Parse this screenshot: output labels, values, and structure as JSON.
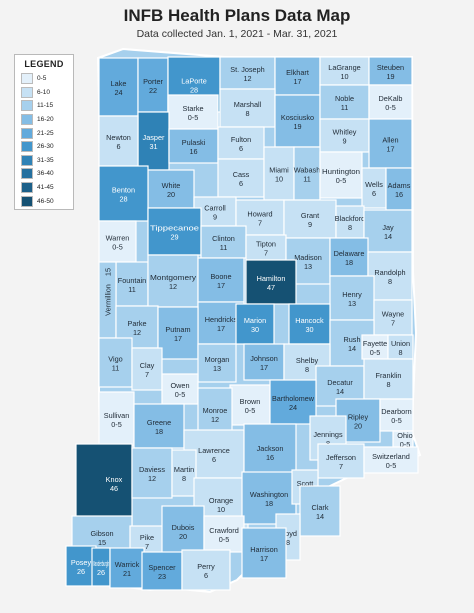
{
  "title": "INFB Health Plans Data Map",
  "subtitle": "Data collected Jan. 1, 2021 - Mar. 31, 2021",
  "legend": {
    "title": "LEGEND",
    "items": [
      {
        "label": "0-5",
        "color": "#e3f0fa"
      },
      {
        "label": "6-10",
        "color": "#c6e1f4"
      },
      {
        "label": "11-15",
        "color": "#a6d0ed"
      },
      {
        "label": "16-20",
        "color": "#84bde5"
      },
      {
        "label": "21-25",
        "color": "#62aadc"
      },
      {
        "label": "26-30",
        "color": "#4296cc"
      },
      {
        "label": "31-35",
        "color": "#2f82b6"
      },
      {
        "label": "36-40",
        "color": "#25709f"
      },
      {
        "label": "41-45",
        "color": "#1c6089"
      },
      {
        "label": "46-50",
        "color": "#155173"
      }
    ]
  },
  "counties": [
    {
      "name": "Lake",
      "value": "24"
    },
    {
      "name": "Porter",
      "value": "22"
    },
    {
      "name": "LaPorte",
      "value": "28"
    },
    {
      "name": "St. Joseph",
      "value": "12"
    },
    {
      "name": "Elkhart",
      "value": "17"
    },
    {
      "name": "LaGrange",
      "value": "10"
    },
    {
      "name": "Steuben",
      "value": "19"
    },
    {
      "name": "Starke",
      "value": "0-5"
    },
    {
      "name": "Marshall",
      "value": "8"
    },
    {
      "name": "Kosciusko",
      "value": "19"
    },
    {
      "name": "Noble",
      "value": "11"
    },
    {
      "name": "DeKalb",
      "value": "0-5"
    },
    {
      "name": "Jasper",
      "value": "31"
    },
    {
      "name": "Pulaski",
      "value": "16"
    },
    {
      "name": "Fulton",
      "value": "6"
    },
    {
      "name": "Whitley",
      "value": "9"
    },
    {
      "name": "Allen",
      "value": "17"
    },
    {
      "name": "Newton",
      "value": "6"
    },
    {
      "name": "Cass",
      "value": "6"
    },
    {
      "name": "Miami",
      "value": "10"
    },
    {
      "name": "Wabash",
      "value": "11"
    },
    {
      "name": "Huntington",
      "value": "0-5"
    },
    {
      "name": "Wells",
      "value": "6"
    },
    {
      "name": "Adams",
      "value": "16"
    },
    {
      "name": "White",
      "value": "20"
    },
    {
      "name": "Benton",
      "value": "28"
    },
    {
      "name": "Carroll",
      "value": "9"
    },
    {
      "name": "Howard",
      "value": "7"
    },
    {
      "name": "Grant",
      "value": "9"
    },
    {
      "name": "Blackford",
      "value": "8"
    },
    {
      "name": "Jay",
      "value": "14"
    },
    {
      "name": "Warren",
      "value": "0-5"
    },
    {
      "name": "Tippecanoe",
      "value": "29"
    },
    {
      "name": "Clinton",
      "value": "11"
    },
    {
      "name": "Tipton",
      "value": "7"
    },
    {
      "name": "Madison",
      "value": "13"
    },
    {
      "name": "Delaware",
      "value": "18"
    },
    {
      "name": "Randolph",
      "value": "8"
    },
    {
      "name": "Fountain",
      "value": "11"
    },
    {
      "name": "Montgomery",
      "value": "12"
    },
    {
      "name": "Boone",
      "value": "17"
    },
    {
      "name": "Hamilton",
      "value": "47"
    },
    {
      "name": "Henry",
      "value": "13"
    },
    {
      "name": "Wayne",
      "value": "7"
    },
    {
      "name": "Vermillion",
      "value": "15"
    },
    {
      "name": "Parke",
      "value": "12"
    },
    {
      "name": "Hendricks",
      "value": "17"
    },
    {
      "name": "Marion",
      "value": "30"
    },
    {
      "name": "Hancock",
      "value": "30"
    },
    {
      "name": "Rush",
      "value": "14"
    },
    {
      "name": "Fayette",
      "value": "0-5"
    },
    {
      "name": "Union",
      "value": "8"
    },
    {
      "name": "Putnam",
      "value": "17"
    },
    {
      "name": "Morgan",
      "value": "13"
    },
    {
      "name": "Johnson",
      "value": "17"
    },
    {
      "name": "Shelby",
      "value": "8"
    },
    {
      "name": "Decatur",
      "value": "14"
    },
    {
      "name": "Franklin",
      "value": "8"
    },
    {
      "name": "Vigo",
      "value": "11"
    },
    {
      "name": "Clay",
      "value": "7"
    },
    {
      "name": "Owen",
      "value": "0-5"
    },
    {
      "name": "Brown",
      "value": "0-5"
    },
    {
      "name": "Bartholomew",
      "value": "24"
    },
    {
      "name": "Ripley",
      "value": "20"
    },
    {
      "name": "Dearborn",
      "value": "0-5"
    },
    {
      "name": "Sullivan",
      "value": "0-5"
    },
    {
      "name": "Greene",
      "value": "18"
    },
    {
      "name": "Monroe",
      "value": "12"
    },
    {
      "name": "Jennings",
      "value": "8"
    },
    {
      "name": "Ohio",
      "value": "0-5"
    },
    {
      "name": "Lawrence",
      "value": "6"
    },
    {
      "name": "Jackson",
      "value": "16"
    },
    {
      "name": "Jefferson",
      "value": "7"
    },
    {
      "name": "Switzerland",
      "value": "0-5"
    },
    {
      "name": "Knox",
      "value": "46"
    },
    {
      "name": "Daviess",
      "value": "12"
    },
    {
      "name": "Martin",
      "value": "8"
    },
    {
      "name": "Orange",
      "value": "10"
    },
    {
      "name": "Washington",
      "value": "18"
    },
    {
      "name": "Scott",
      "value": "8"
    },
    {
      "name": "Clark",
      "value": "14"
    },
    {
      "name": "Gibson",
      "value": "15"
    },
    {
      "name": "Pike",
      "value": "7"
    },
    {
      "name": "Dubois",
      "value": "20"
    },
    {
      "name": "Crawford",
      "value": "0-5"
    },
    {
      "name": "Floyd",
      "value": "8"
    },
    {
      "name": "Harrison",
      "value": "17"
    },
    {
      "name": "Posey",
      "value": "26"
    },
    {
      "name": "Vanderburgh",
      "value": "26"
    },
    {
      "name": "Warrick",
      "value": "21"
    },
    {
      "name": "Spencer",
      "value": "23"
    },
    {
      "name": "Perry",
      "value": "6"
    }
  ]
}
